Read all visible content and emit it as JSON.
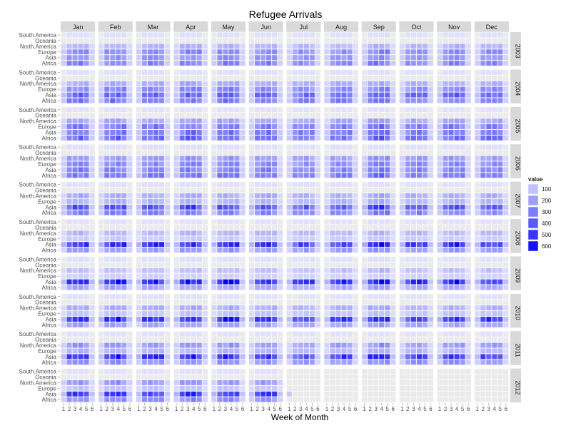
{
  "chart_data": {
    "type": "heatmap",
    "title": "Refugee Arrivals",
    "xlabel": "Week of Month",
    "ylabel": "",
    "x_ticks": [
      "1",
      "2",
      "3",
      "4",
      "5",
      "6"
    ],
    "y_categories": [
      "South.America",
      "Oceania",
      "North.America",
      "Europe",
      "Asia",
      "Africa"
    ],
    "facet_columns": [
      "Jan",
      "Feb",
      "Mar",
      "Apr",
      "May",
      "Jun",
      "Jul",
      "Aug",
      "Sep",
      "Oct",
      "Nov",
      "Dec"
    ],
    "facet_rows": [
      "2003",
      "2004",
      "2005",
      "2006",
      "2007",
      "2008",
      "2009",
      "2010",
      "2011",
      "2012"
    ],
    "legend": {
      "title": "value",
      "breaks": [
        100,
        200,
        300,
        400,
        500,
        600
      ],
      "placement": "right"
    },
    "color_low": "#e4e4ff",
    "color_high": "#0000ff",
    "value_range": [
      0,
      650
    ],
    "region_profiles": {
      "South.America": [
        15,
        15,
        10,
        15,
        10,
        10,
        15,
        10,
        10,
        10
      ],
      "Oceania": [
        5,
        5,
        5,
        5,
        5,
        5,
        5,
        5,
        5,
        5
      ],
      "North.America": [
        150,
        180,
        200,
        230,
        170,
        140,
        120,
        170,
        230,
        230
      ],
      "Europe": [
        280,
        280,
        320,
        280,
        150,
        80,
        60,
        100,
        150,
        100
      ],
      "Asia": [
        250,
        400,
        330,
        300,
        450,
        540,
        580,
        560,
        540,
        500
      ],
      "Africa": [
        300,
        330,
        380,
        330,
        300,
        230,
        200,
        200,
        250,
        260
      ]
    },
    "note_2012": "Data ends in July 2012"
  }
}
